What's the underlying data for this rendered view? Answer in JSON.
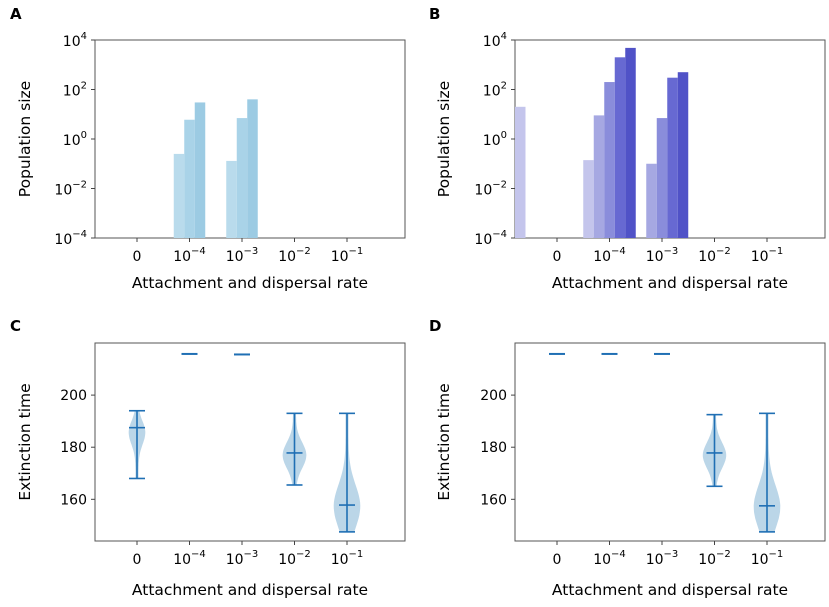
{
  "chart_data": [
    {
      "panel": "A",
      "type": "bar",
      "yscale": "log",
      "ylim_exp": [
        -4,
        4
      ],
      "ylabel": "Population size",
      "xlabel": "Attachment and dispersal rate",
      "xtick_labels": [
        {
          "base": "0",
          "exp": ""
        },
        {
          "base": "10",
          "exp": "−4"
        },
        {
          "base": "10",
          "exp": "−3"
        },
        {
          "base": "10",
          "exp": "−2"
        },
        {
          "base": "10",
          "exp": "−1"
        }
      ],
      "ytick_labels": [
        {
          "base": "10",
          "exp": "−4"
        },
        {
          "base": "10",
          "exp": "−2"
        },
        {
          "base": "10",
          "exp": "0"
        },
        {
          "base": "10",
          "exp": "2"
        },
        {
          "base": "10",
          "exp": "4"
        }
      ],
      "bars": [
        {
          "group": 1,
          "slot": 0,
          "value": 0.25,
          "color": "#b9dbec"
        },
        {
          "group": 1,
          "slot": 1,
          "value": 6,
          "color": "#a9d3e8"
        },
        {
          "group": 1,
          "slot": 2,
          "value": 30,
          "color": "#9ccbe3"
        },
        {
          "group": 2,
          "slot": 0,
          "value": 0.13,
          "color": "#b9dbec"
        },
        {
          "group": 2,
          "slot": 1,
          "value": 7,
          "color": "#a9d3e8"
        },
        {
          "group": 2,
          "slot": 2,
          "value": 40,
          "color": "#9ccbe3"
        }
      ]
    },
    {
      "panel": "B",
      "type": "bar",
      "yscale": "log",
      "ylim_exp": [
        -4,
        4
      ],
      "ylabel": "Population size",
      "xlabel": "Attachment and dispersal rate",
      "xtick_labels": [
        {
          "base": "0",
          "exp": ""
        },
        {
          "base": "10",
          "exp": "−4"
        },
        {
          "base": "10",
          "exp": "−3"
        },
        {
          "base": "10",
          "exp": "−2"
        },
        {
          "base": "10",
          "exp": "−1"
        }
      ],
      "ytick_labels": [
        {
          "base": "10",
          "exp": "−4"
        },
        {
          "base": "10",
          "exp": "−2"
        },
        {
          "base": "10",
          "exp": "0"
        },
        {
          "base": "10",
          "exp": "2"
        },
        {
          "base": "10",
          "exp": "4"
        }
      ],
      "bars": [
        {
          "group": 0,
          "slot": -2.5,
          "value": 20,
          "color": "#c4c5ec"
        },
        {
          "group": 1,
          "slot": -1,
          "value": 0.14,
          "color": "#c4c5ec"
        },
        {
          "group": 1,
          "slot": 0,
          "value": 9,
          "color": "#a6a8e2"
        },
        {
          "group": 1,
          "slot": 1,
          "value": 200,
          "color": "#8a8ddb"
        },
        {
          "group": 1,
          "slot": 2,
          "value": 2000,
          "color": "#6769d2"
        },
        {
          "group": 1,
          "slot": 3,
          "value": 4800,
          "color": "#5052c7"
        },
        {
          "group": 2,
          "slot": 0,
          "value": 0.1,
          "color": "#a6a8e2"
        },
        {
          "group": 2,
          "slot": 1,
          "value": 7,
          "color": "#8a8ddb"
        },
        {
          "group": 2,
          "slot": 2,
          "value": 300,
          "color": "#6769d2"
        },
        {
          "group": 2,
          "slot": 3,
          "value": 500,
          "color": "#5052c7"
        }
      ]
    },
    {
      "panel": "C",
      "type": "violin",
      "ylabel": "Extinction time",
      "xlabel": "Attachment and dispersal rate",
      "ylim": [
        144,
        220
      ],
      "yticks": [
        160,
        180,
        200
      ],
      "xtick_labels": [
        {
          "base": "0",
          "exp": ""
        },
        {
          "base": "10",
          "exp": "−4"
        },
        {
          "base": "10",
          "exp": "−3"
        },
        {
          "base": "10",
          "exp": "−2"
        },
        {
          "base": "10",
          "exp": "−1"
        }
      ],
      "violins": [
        {
          "x": 0,
          "min": 168,
          "max": 194,
          "median": 187.5
        },
        {
          "x": 1,
          "point": 215.8
        },
        {
          "x": 2,
          "point": 215.6
        },
        {
          "x": 3,
          "min": 165.5,
          "max": 193,
          "median": 177.8
        },
        {
          "x": 4,
          "min": 147.5,
          "max": 193,
          "median": 157.8
        }
      ]
    },
    {
      "panel": "D",
      "type": "violin",
      "ylabel": "Extinction time",
      "xlabel": "Attachment and dispersal rate",
      "ylim": [
        144,
        220
      ],
      "yticks": [
        160,
        180,
        200
      ],
      "xtick_labels": [
        {
          "base": "0",
          "exp": ""
        },
        {
          "base": "10",
          "exp": "−4"
        },
        {
          "base": "10",
          "exp": "−3"
        },
        {
          "base": "10",
          "exp": "−2"
        },
        {
          "base": "10",
          "exp": "−1"
        }
      ],
      "violins": [
        {
          "x": 0,
          "point": 215.8
        },
        {
          "x": 1,
          "point": 215.8
        },
        {
          "x": 2,
          "point": 215.8
        },
        {
          "x": 3,
          "min": 165,
          "max": 192.5,
          "median": 177.8
        },
        {
          "x": 4,
          "min": 147.5,
          "max": 193,
          "median": 157.5
        }
      ]
    }
  ],
  "colors": {
    "violin_line": "#1f6fb4",
    "violin_fill": "#1f77b4"
  }
}
